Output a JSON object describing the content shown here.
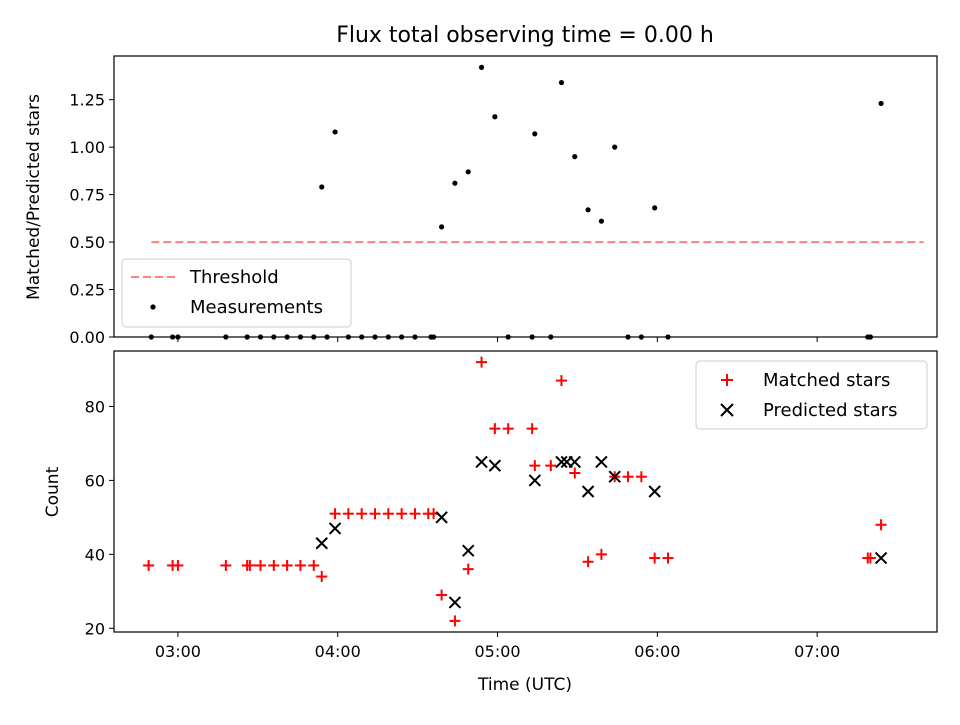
{
  "chart_data": [
    {
      "type": "scatter",
      "title": "Flux total observing time = 0.00 h",
      "ylabel": "Matched/Predicted stars",
      "xlabel": "",
      "ylim": [
        0,
        1.48
      ],
      "xlim": [
        "02:36",
        "07:45"
      ],
      "x_tick_labels": [
        "03:00",
        "04:00",
        "05:00",
        "06:00",
        "07:00"
      ],
      "x_tick_values": [
        "03:00",
        "04:00",
        "05:00",
        "06:00",
        "07:00"
      ],
      "y_ticks": [
        0.0,
        0.25,
        0.5,
        0.75,
        1.0,
        1.25
      ],
      "y_tick_labels": [
        "0.00",
        "0.25",
        "0.50",
        "0.75",
        "1.00",
        "1.25"
      ],
      "legend_position": "lower-left",
      "threshold": {
        "name": "Threshold",
        "value": 0.5,
        "x_start": "02:50",
        "x_end": "07:40",
        "color": "#ff8080",
        "style": "dashed"
      },
      "series": [
        {
          "name": "Measurements",
          "marker": "dot",
          "color": "#000000",
          "points": [
            [
              "02:50",
              0.0
            ],
            [
              "02:58",
              0.0
            ],
            [
              "03:00",
              0.0
            ],
            [
              "03:18",
              0.0
            ],
            [
              "03:26",
              0.0
            ],
            [
              "03:31",
              0.0
            ],
            [
              "03:36",
              0.0
            ],
            [
              "03:41",
              0.0
            ],
            [
              "03:46",
              0.0
            ],
            [
              "03:51",
              0.0
            ],
            [
              "03:56",
              0.0
            ],
            [
              "03:54",
              0.79
            ],
            [
              "03:59",
              1.08
            ],
            [
              "04:04",
              0.0
            ],
            [
              "04:09",
              0.0
            ],
            [
              "04:14",
              0.0
            ],
            [
              "04:19",
              0.0
            ],
            [
              "04:24",
              0.0
            ],
            [
              "04:29",
              0.0
            ],
            [
              "04:35",
              0.0
            ],
            [
              "04:36",
              0.0
            ],
            [
              "04:39",
              0.58
            ],
            [
              "04:44",
              0.81
            ],
            [
              "04:49",
              0.87
            ],
            [
              "04:54",
              1.42
            ],
            [
              "04:59",
              1.16
            ],
            [
              "05:04",
              0.0
            ],
            [
              "05:13",
              0.0
            ],
            [
              "05:14",
              1.07
            ],
            [
              "05:20",
              0.0
            ],
            [
              "05:24",
              1.34
            ],
            [
              "05:29",
              0.95
            ],
            [
              "05:34",
              0.67
            ],
            [
              "05:39",
              0.61
            ],
            [
              "05:44",
              1.0
            ],
            [
              "05:49",
              0.0
            ],
            [
              "05:54",
              0.0
            ],
            [
              "05:59",
              0.68
            ],
            [
              "06:04",
              0.0
            ],
            [
              "07:19",
              0.0
            ],
            [
              "07:20",
              0.0
            ],
            [
              "07:24",
              1.23
            ]
          ]
        }
      ]
    },
    {
      "type": "scatter",
      "title": "",
      "ylabel": "Count",
      "xlabel": "Time (UTC)",
      "ylim": [
        19,
        95
      ],
      "xlim": [
        "02:36",
        "07:45"
      ],
      "x_tick_labels": [
        "03:00",
        "04:00",
        "05:00",
        "06:00",
        "07:00"
      ],
      "x_tick_values": [
        "03:00",
        "04:00",
        "05:00",
        "06:00",
        "07:00"
      ],
      "y_ticks": [
        20,
        40,
        60,
        80
      ],
      "y_tick_labels": [
        "20",
        "40",
        "60",
        "80"
      ],
      "legend_position": "upper-right",
      "series": [
        {
          "name": "Matched stars",
          "marker": "plus",
          "color": "#ff0000",
          "points": [
            [
              "02:49",
              37
            ],
            [
              "02:58",
              37
            ],
            [
              "03:00",
              37
            ],
            [
              "03:18",
              37
            ],
            [
              "03:26",
              37
            ],
            [
              "03:27",
              37
            ],
            [
              "03:31",
              37
            ],
            [
              "03:36",
              37
            ],
            [
              "03:41",
              37
            ],
            [
              "03:46",
              37
            ],
            [
              "03:51",
              37
            ],
            [
              "03:54",
              34
            ],
            [
              "03:59",
              51
            ],
            [
              "04:04",
              51
            ],
            [
              "04:09",
              51
            ],
            [
              "04:14",
              51
            ],
            [
              "04:19",
              51
            ],
            [
              "04:24",
              51
            ],
            [
              "04:29",
              51
            ],
            [
              "04:34",
              51
            ],
            [
              "04:36",
              51
            ],
            [
              "04:39",
              29
            ],
            [
              "04:44",
              22
            ],
            [
              "04:49",
              36
            ],
            [
              "04:54",
              92
            ],
            [
              "04:59",
              74
            ],
            [
              "05:04",
              74
            ],
            [
              "05:13",
              74
            ],
            [
              "05:14",
              64
            ],
            [
              "05:20",
              64
            ],
            [
              "05:24",
              87
            ],
            [
              "05:29",
              62
            ],
            [
              "05:34",
              38
            ],
            [
              "05:39",
              40
            ],
            [
              "05:44",
              61
            ],
            [
              "05:49",
              61
            ],
            [
              "05:54",
              61
            ],
            [
              "05:59",
              39
            ],
            [
              "06:04",
              39
            ],
            [
              "07:19",
              39
            ],
            [
              "07:20",
              39
            ],
            [
              "07:24",
              48
            ]
          ]
        },
        {
          "name": "Predicted stars",
          "marker": "x",
          "color": "#000000",
          "points": [
            [
              "03:54",
              43
            ],
            [
              "03:59",
              47
            ],
            [
              "04:39",
              50
            ],
            [
              "04:44",
              27
            ],
            [
              "04:49",
              41
            ],
            [
              "04:54",
              65
            ],
            [
              "04:59",
              64
            ],
            [
              "05:14",
              60
            ],
            [
              "05:24",
              65
            ],
            [
              "05:26",
              65
            ],
            [
              "05:29",
              65
            ],
            [
              "05:34",
              57
            ],
            [
              "05:39",
              65
            ],
            [
              "05:44",
              61
            ],
            [
              "05:59",
              57
            ],
            [
              "07:24",
              39
            ]
          ]
        }
      ]
    }
  ]
}
